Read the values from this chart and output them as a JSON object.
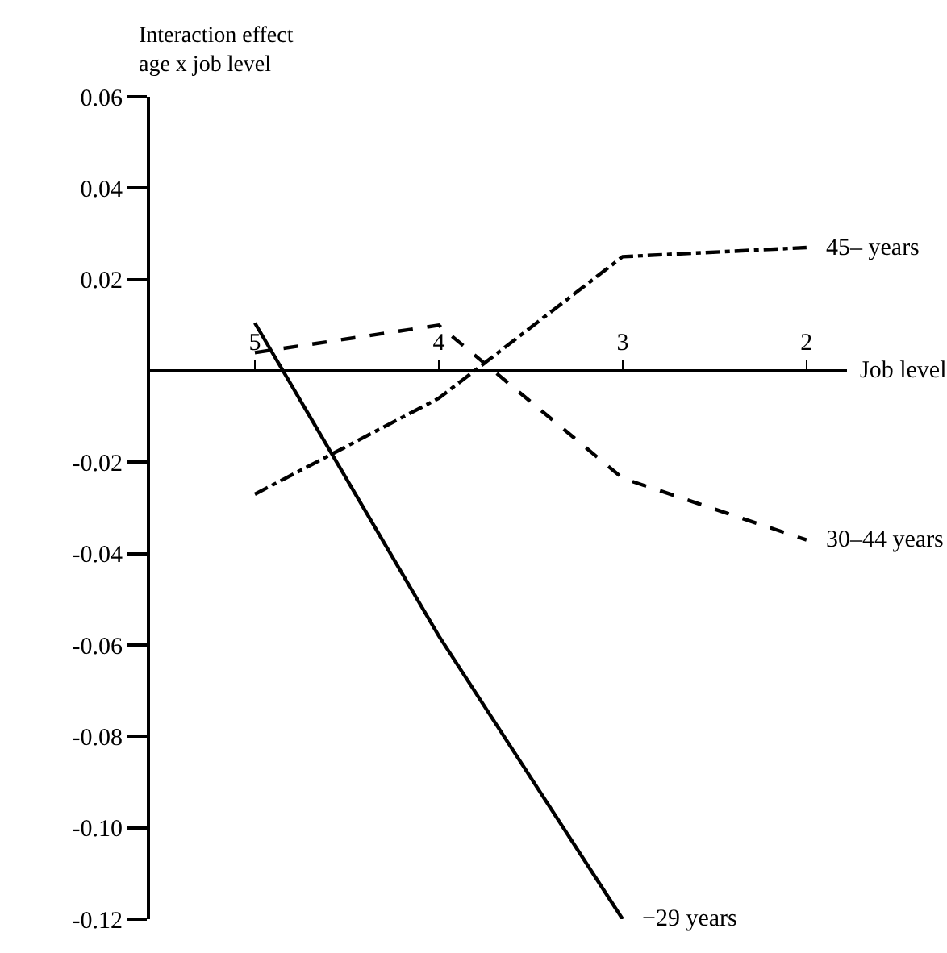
{
  "chart_data": {
    "type": "line",
    "ylabel": "Interaction effect\nage x job level",
    "xlabel": "Job level",
    "x": [
      5,
      4,
      3,
      2
    ],
    "xlim": [
      5.57,
      1.78
    ],
    "xticks": [
      5,
      4,
      3,
      2
    ],
    "ylim": [
      -0.12,
      0.06
    ],
    "yticks": [
      {
        "value": 0.06,
        "label": "0.06"
      },
      {
        "value": 0.04,
        "label": "0.04"
      },
      {
        "value": 0.02,
        "label": "0.02"
      },
      {
        "value": -0.02,
        "label": "-0.02"
      },
      {
        "value": -0.04,
        "label": "-0.04"
      },
      {
        "value": -0.06,
        "label": "-0.06"
      },
      {
        "value": -0.08,
        "label": "-0.08"
      },
      {
        "value": -0.1,
        "label": "-0.10"
      },
      {
        "value": -0.12,
        "label": "-0.12"
      }
    ],
    "series": [
      {
        "name": "−29 years",
        "color": "#000000",
        "line_style": "solid",
        "values": [
          0.0105,
          -0.058,
          -0.12,
          null
        ]
      },
      {
        "name": "30–44 years",
        "color": "#000000",
        "line_style": "dashed",
        "values": [
          0.004,
          0.01,
          -0.0235,
          -0.037
        ]
      },
      {
        "name": "45– years",
        "color": "#000000",
        "line_style": "dashdot",
        "values": [
          -0.027,
          -0.006,
          0.025,
          0.027
        ]
      }
    ],
    "grid": false,
    "legend": false,
    "marker": "none"
  }
}
